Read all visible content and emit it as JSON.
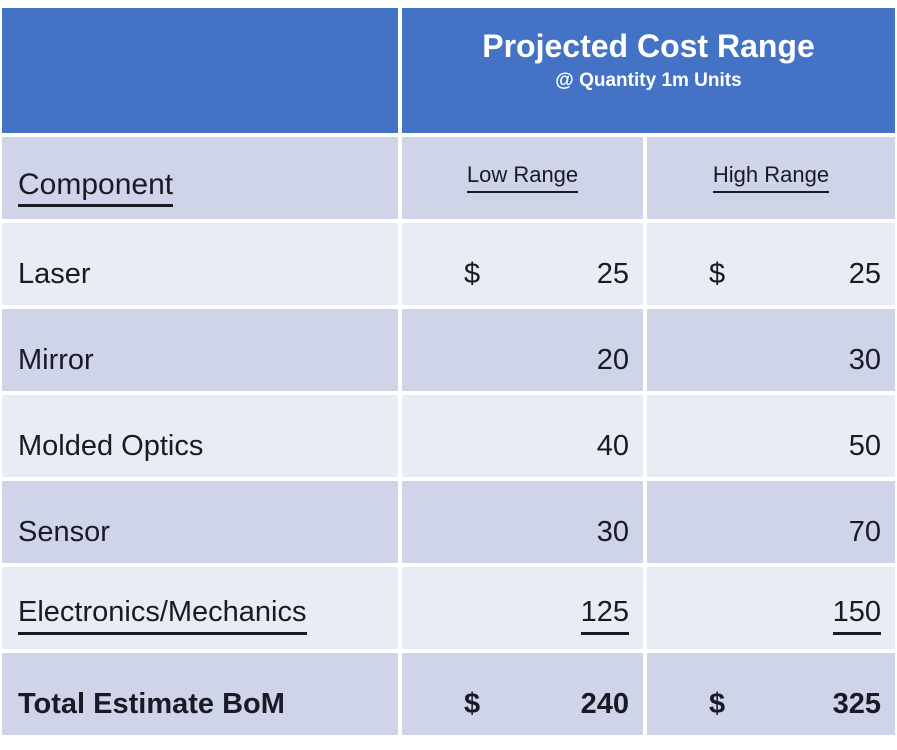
{
  "header": {
    "title": "Projected Cost Range",
    "subtitle": "@ Quantity 1m Units"
  },
  "columns": {
    "component": "Component",
    "low": "Low Range",
    "high": "High Range"
  },
  "rows": [
    {
      "component": "Laser",
      "low_currency": "$",
      "low": "25",
      "high_currency": "$",
      "high": "25"
    },
    {
      "component": "Mirror",
      "low": "20",
      "high": "30"
    },
    {
      "component": "Molded Optics",
      "low": "40",
      "high": "50"
    },
    {
      "component": "Sensor",
      "low": "30",
      "high": "70"
    },
    {
      "component": "Electronics/Mechanics",
      "low": "125",
      "high": "150"
    },
    {
      "component": "Total Estimate BoM",
      "low_currency": "$",
      "low": "240",
      "high_currency": "$",
      "high": "325"
    }
  ],
  "colors": {
    "header_bg": "#4472C4",
    "row_light": "#E9EBF5",
    "row_dark": "#CFD4E9",
    "header_text": "#FFFFFF",
    "body_text": "#1A1A24"
  }
}
